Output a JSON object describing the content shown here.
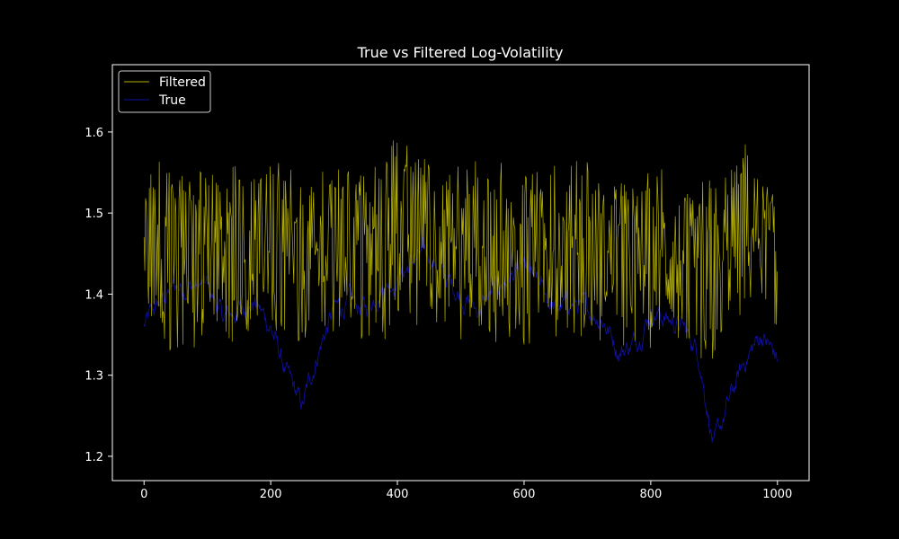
{
  "colors": {
    "background": "#000000",
    "foreground": "#ffffff",
    "filtered": "#b5b000",
    "true": "#1010a8"
  },
  "chart_data": {
    "type": "line",
    "title": "True vs Filtered Log-Volatility",
    "xlabel": "",
    "ylabel": "",
    "xlim": [
      -50,
      1050
    ],
    "ylim": [
      1.17,
      1.683
    ],
    "xticks": [
      0,
      200,
      400,
      600,
      800,
      1000
    ],
    "yticks": [
      1.2,
      1.3,
      1.4,
      1.5,
      1.6
    ],
    "ytick_labels": [
      "1.2",
      "1.3",
      "1.4",
      "1.5",
      "1.6"
    ],
    "grid": false,
    "legend": {
      "location": "upper left",
      "entries": [
        "Filtered",
        "True"
      ]
    },
    "series": [
      {
        "name": "Filtered",
        "color": "#b5b000",
        "x": [
          0,
          50,
          100,
          150,
          200,
          250,
          300,
          350,
          400,
          450,
          500,
          550,
          600,
          650,
          700,
          750,
          800,
          850,
          900,
          950,
          1000
        ],
        "values": [
          1.46,
          1.45,
          1.44,
          1.45,
          1.47,
          1.43,
          1.46,
          1.45,
          1.47,
          1.48,
          1.45,
          1.46,
          1.44,
          1.45,
          1.46,
          1.44,
          1.45,
          1.44,
          1.42,
          1.5,
          1.44
        ],
        "envelope": {
          "upper": [
            1.58,
            1.56,
            1.55,
            1.56,
            1.57,
            1.55,
            1.56,
            1.55,
            1.6,
            1.57,
            1.56,
            1.57,
            1.55,
            1.56,
            1.57,
            1.54,
            1.56,
            1.55,
            1.55,
            1.6,
            1.52
          ],
          "lower": [
            1.34,
            1.32,
            1.34,
            1.34,
            1.35,
            1.31,
            1.35,
            1.34,
            1.34,
            1.37,
            1.34,
            1.34,
            1.33,
            1.34,
            1.35,
            1.33,
            1.33,
            1.33,
            1.31,
            1.38,
            1.35
          ]
        }
      },
      {
        "name": "True",
        "color": "#1010a8",
        "x": [
          0,
          25,
          50,
          75,
          100,
          125,
          150,
          175,
          200,
          225,
          250,
          275,
          300,
          325,
          350,
          375,
          400,
          425,
          450,
          475,
          500,
          525,
          550,
          575,
          600,
          625,
          650,
          675,
          700,
          725,
          750,
          775,
          800,
          825,
          850,
          875,
          900,
          925,
          950,
          975,
          1000
        ],
        "values": [
          1.36,
          1.39,
          1.41,
          1.41,
          1.41,
          1.37,
          1.38,
          1.39,
          1.36,
          1.3,
          1.26,
          1.33,
          1.38,
          1.39,
          1.38,
          1.41,
          1.42,
          1.44,
          1.45,
          1.42,
          1.4,
          1.38,
          1.4,
          1.42,
          1.43,
          1.41,
          1.38,
          1.39,
          1.38,
          1.37,
          1.33,
          1.34,
          1.38,
          1.37,
          1.36,
          1.33,
          1.21,
          1.27,
          1.32,
          1.35,
          1.32
        ]
      }
    ]
  }
}
